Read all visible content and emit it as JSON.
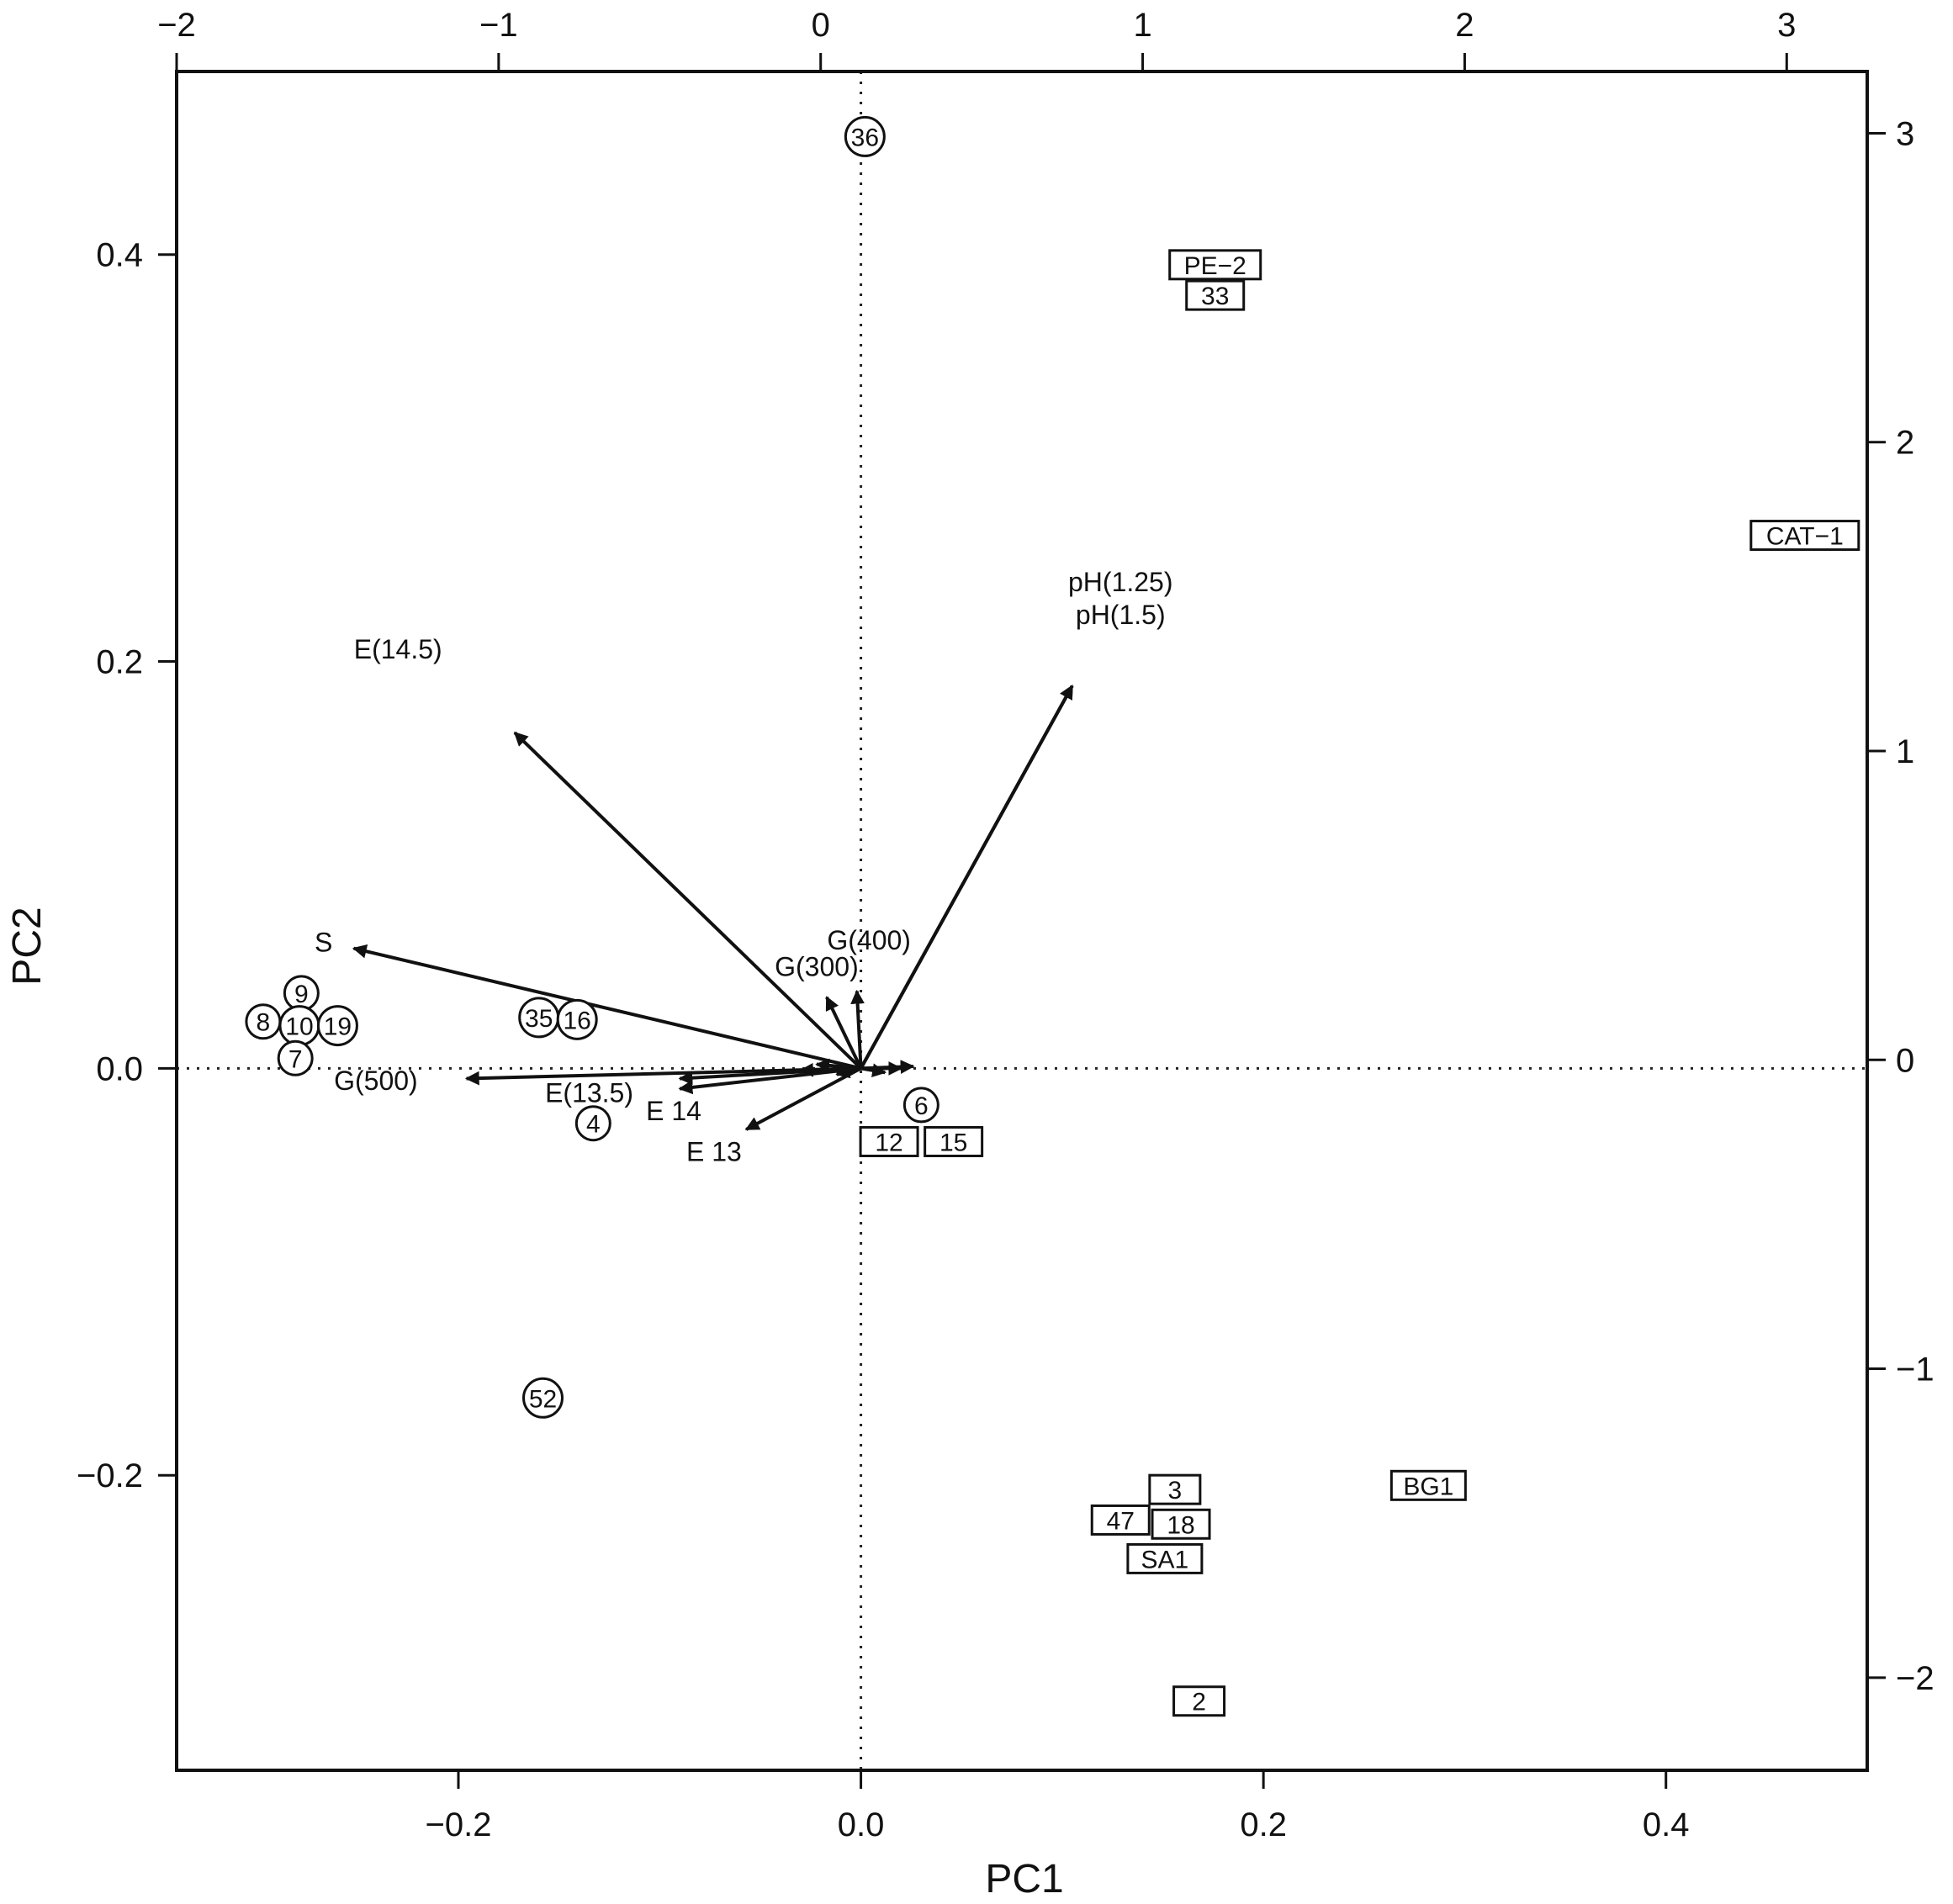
{
  "chart_data": {
    "type": "scatter",
    "subtype": "biplot",
    "xlabel": "PC1",
    "ylabel": "PC2",
    "xlim": [
      -0.34,
      0.5
    ],
    "ylim": [
      -0.345,
      0.49
    ],
    "x_ticks": [
      "−0.2",
      "0.0",
      "0.2",
      "0.4"
    ],
    "x_tick_values": [
      -0.2,
      0.0,
      0.2,
      0.4
    ],
    "y_ticks": [
      "−0.2",
      "0.0",
      "0.2",
      "0.4"
    ],
    "y_tick_values": [
      -0.2,
      0.0,
      0.2,
      0.4
    ],
    "top_axis": {
      "lim": [
        -2.0,
        3.25
      ],
      "ticks": [
        "−2",
        "−1",
        "0",
        "1",
        "2",
        "3"
      ],
      "tick_values": [
        -2,
        -1,
        0,
        1,
        2,
        3
      ]
    },
    "right_axis": {
      "lim": [
        -2.3,
        3.2
      ],
      "ticks": [
        "3",
        "2",
        "1",
        "0",
        "−1",
        "−2"
      ],
      "tick_values": [
        3,
        2,
        1,
        0,
        -1,
        -2
      ]
    },
    "reference_lines": "dotted lines at x = 0 and y = 0",
    "grid": false,
    "circle_points": [
      {
        "label": "36",
        "x": 0.002,
        "y": 0.458
      },
      {
        "label": "9",
        "x": -0.278,
        "y": 0.037
      },
      {
        "label": "8",
        "x": -0.297,
        "y": 0.023
      },
      {
        "label": "10",
        "x": -0.279,
        "y": 0.021
      },
      {
        "label": "19",
        "x": -0.26,
        "y": 0.021
      },
      {
        "label": "7",
        "x": -0.281,
        "y": 0.005
      },
      {
        "label": "35",
        "x": -0.16,
        "y": 0.025
      },
      {
        "label": "16",
        "x": -0.141,
        "y": 0.024
      },
      {
        "label": "4",
        "x": -0.133,
        "y": -0.027
      },
      {
        "label": "6",
        "x": 0.03,
        "y": -0.018
      },
      {
        "label": "52",
        "x": -0.158,
        "y": -0.162
      }
    ],
    "box_points": [
      {
        "label": "PE−2",
        "x": 0.176,
        "y": 0.395
      },
      {
        "label": "33",
        "x": 0.176,
        "y": 0.38
      },
      {
        "label": "CAT−1",
        "x": 0.469,
        "y": 0.262
      },
      {
        "label": "12",
        "x": 0.014,
        "y": -0.036
      },
      {
        "label": "15",
        "x": 0.046,
        "y": -0.036
      },
      {
        "label": "3",
        "x": 0.156,
        "y": -0.207
      },
      {
        "label": "47",
        "x": 0.129,
        "y": -0.222
      },
      {
        "label": "18",
        "x": 0.159,
        "y": -0.224
      },
      {
        "label": "SA1",
        "x": 0.151,
        "y": -0.241
      },
      {
        "label": "BG1",
        "x": 0.282,
        "y": -0.205
      },
      {
        "label": "2",
        "x": 0.168,
        "y": -0.311
      }
    ],
    "variable_arrows": [
      {
        "label": "E(14.5)",
        "x": -0.172,
        "y": 0.165
      },
      {
        "label": "pH(1.25)",
        "x": 0.105,
        "y": 0.188
      },
      {
        "label": "pH(1.5)",
        "x": 0.105,
        "y": 0.188
      },
      {
        "label": "S",
        "x": -0.252,
        "y": 0.059
      },
      {
        "label": "G(400)",
        "x": -0.002,
        "y": 0.038
      },
      {
        "label": "G(300)",
        "x": -0.017,
        "y": 0.035
      },
      {
        "label": "G(500)",
        "x": -0.196,
        "y": -0.005
      },
      {
        "label": "E(13.5)",
        "x": -0.09,
        "y": -0.005
      },
      {
        "label": "E 14",
        "x": -0.09,
        "y": -0.01
      },
      {
        "label": "E 13",
        "x": -0.057,
        "y": -0.03
      }
    ],
    "variable_labels": [
      {
        "text": "E(14.5)",
        "x": -0.23,
        "y": 0.206
      },
      {
        "text": "pH(1.25)",
        "x": 0.129,
        "y": 0.239
      },
      {
        "text": "pH(1.5)",
        "x": 0.129,
        "y": 0.223
      },
      {
        "text": "S",
        "x": -0.267,
        "y": 0.062
      },
      {
        "text": "G(400)",
        "x": 0.004,
        "y": 0.063
      },
      {
        "text": "G(300)",
        "x": -0.022,
        "y": 0.05
      },
      {
        "text": "G(500)",
        "x": -0.241,
        "y": -0.006
      },
      {
        "text": "E(13.5)",
        "x": -0.135,
        "y": -0.012
      },
      {
        "text": "E 14",
        "x": -0.093,
        "y": -0.021
      },
      {
        "text": "E 13",
        "x": -0.073,
        "y": -0.041
      }
    ],
    "clustered_arrows": [
      {
        "x": 0.02,
        "y": 0.0
      },
      {
        "x": 0.026,
        "y": 0.001
      },
      {
        "x": -0.03,
        "y": -0.001
      },
      {
        "x": -0.022,
        "y": 0.002
      },
      {
        "x": 0.012,
        "y": -0.002
      },
      {
        "x": -0.012,
        "y": -0.003
      }
    ]
  }
}
